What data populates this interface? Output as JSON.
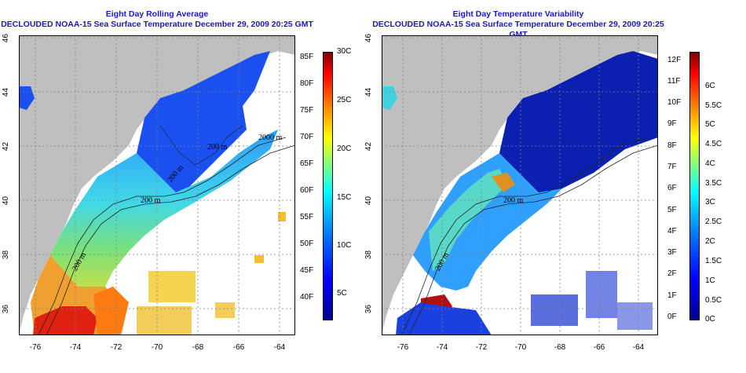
{
  "left": {
    "title1": "Eight Day Rolling Average",
    "title2": "DECLOUDED NOAA-15 Sea Surface Temperature December 29, 2009 20:25 GMT",
    "contours": [
      "200 m",
      "200 m",
      "2000 m",
      "200 m",
      "200 m"
    ],
    "colorbar_f": [
      "85F",
      "80F",
      "75F",
      "70F",
      "65F",
      "60F",
      "55F",
      "50F",
      "45F",
      "40F"
    ],
    "colorbar_c": [
      "30C",
      "25C",
      "20C",
      "15C",
      "10C",
      "5C"
    ],
    "colors": [
      "#00008f",
      "#0000ff",
      "#0080ff",
      "#00ffff",
      "#80ff80",
      "#ffff00",
      "#ff8000",
      "#ff0000",
      "#800000"
    ]
  },
  "right": {
    "title1": "Eight Day Temperature Variability",
    "title2": "DECLOUDED NOAA-15 Sea Surface Temperature December 29, 2009 20:25 GMT",
    "contours": [
      "200 m",
      "200 m"
    ],
    "colorbar_f": [
      "12F",
      "11F",
      "10F",
      "9F",
      "8F",
      "7F",
      "6F",
      "5F",
      "4F",
      "3F",
      "2F",
      "1F",
      "0F"
    ],
    "colorbar_c": [
      "6C",
      "5.5C",
      "5C",
      "4.5C",
      "4C",
      "3.5C",
      "3C",
      "2.5C",
      "2C",
      "1.5C",
      "1C",
      "0.5C",
      "0C"
    ],
    "colors": [
      "#00008f",
      "#0000ff",
      "#0080ff",
      "#00ffff",
      "#80ff80",
      "#ffff00",
      "#ff8000",
      "#ff0000",
      "#800000"
    ]
  },
  "axes": {
    "x_ticks": [
      "-76",
      "-74",
      "-72",
      "-70",
      "-68",
      "-66",
      "-64"
    ],
    "y_ticks": [
      "46",
      "44",
      "42",
      "40",
      "38",
      "36"
    ]
  }
}
